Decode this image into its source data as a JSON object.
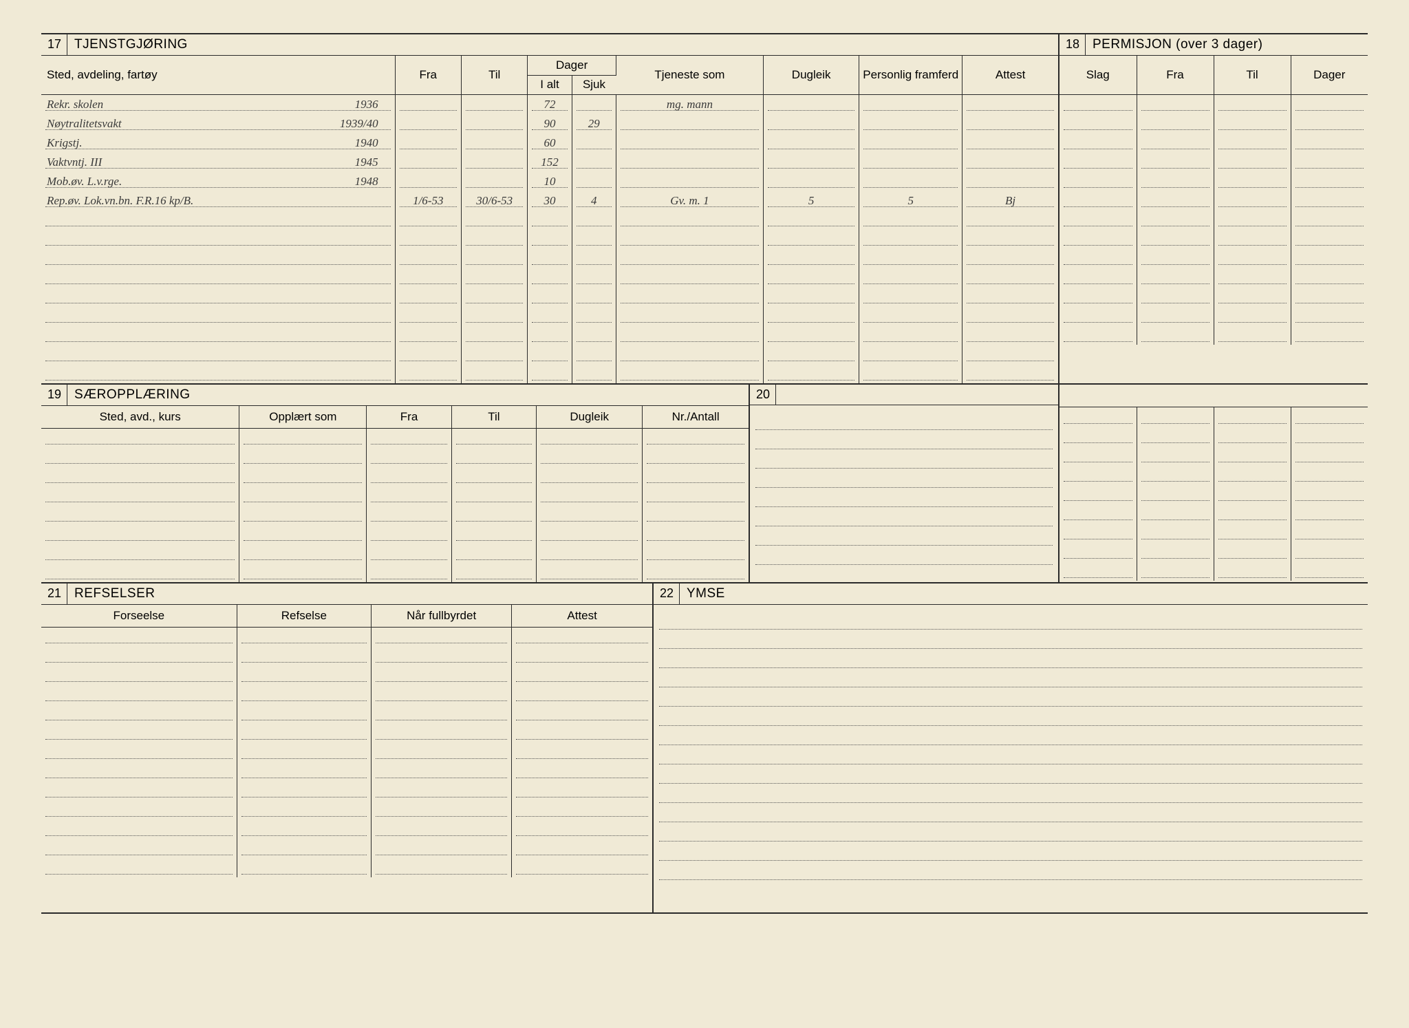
{
  "colors": {
    "paper": "#f0ead6",
    "ink": "#2a2a2a",
    "dotted": "#555555",
    "handwriting": "#3a3a3a"
  },
  "typography": {
    "print_family": "Arial, Helvetica, sans-serif",
    "hand_family": "Brush Script MT, cursive",
    "header_size_pt": 19,
    "label_size_pt": 17,
    "hand_size_pt": 24
  },
  "sec17": {
    "num": "17",
    "title": "TJENSTGJØRING",
    "columns": {
      "sted": "Sted, avdeling, fartøy",
      "fra": "Fra",
      "til": "Til",
      "dager": "Dager",
      "ialt": "I alt",
      "sjuk": "Sjuk",
      "tjeneste": "Tjeneste som",
      "dugleik": "Dugleik",
      "personlig": "Personlig framferd",
      "attest": "Attest"
    },
    "rows": [
      {
        "sted": "Rekr. skolen",
        "year": "1936",
        "fra": "",
        "til": "",
        "ialt": "72",
        "sjuk": "",
        "tjeneste": "mg. mann",
        "dugleik": "",
        "personlig": "",
        "attest": ""
      },
      {
        "sted": "Nøytralitetsvakt",
        "year": "1939/40",
        "fra": "",
        "til": "",
        "ialt": "90",
        "sjuk": "29",
        "tjeneste": "",
        "dugleik": "",
        "personlig": "",
        "attest": ""
      },
      {
        "sted": "Krigstj.",
        "year": "1940",
        "fra": "",
        "til": "",
        "ialt": "60",
        "sjuk": "",
        "tjeneste": "",
        "dugleik": "",
        "personlig": "",
        "attest": ""
      },
      {
        "sted": "Vaktvntj. III",
        "year": "1945",
        "fra": "",
        "til": "",
        "ialt": "152",
        "sjuk": "",
        "tjeneste": "",
        "dugleik": "",
        "personlig": "",
        "attest": ""
      },
      {
        "sted": "Mob.øv. L.v.rge.",
        "year": "1948",
        "fra": "",
        "til": "",
        "ialt": "10",
        "sjuk": "",
        "tjeneste": "",
        "dugleik": "",
        "personlig": "",
        "attest": ""
      },
      {
        "sted": "Rep.øv. Lok.vn.bn.  F.R.16 kp/B.",
        "year": "",
        "fra": "1/6-53",
        "til": "30/6-53",
        "ialt": "30",
        "sjuk": "4",
        "tjeneste": "Gv. m. 1",
        "dugleik": "5",
        "personlig": "5",
        "attest": "Bj"
      }
    ],
    "blank_rows": 9
  },
  "sec18": {
    "num": "18",
    "title": "PERMISJON (over 3 dager)",
    "columns": {
      "slag": "Slag",
      "fra": "Fra",
      "til": "Til",
      "dager": "Dager"
    },
    "blank_rows": 13,
    "blank_rows_lower": 9
  },
  "sec19": {
    "num": "19",
    "title": "SÆROPPLÆRING",
    "columns": {
      "sted": "Sted, avd., kurs",
      "opplart": "Opplært som",
      "fra": "Fra",
      "til": "Til",
      "dugleik": "Dugleik",
      "nr": "Nr./Antall"
    },
    "blank_rows": 8
  },
  "sec20": {
    "num": "20",
    "title": "",
    "blank_rows": 8
  },
  "sec21": {
    "num": "21",
    "title": "REFSELSER",
    "columns": {
      "forseelse": "Forseelse",
      "refselse": "Refselse",
      "nar": "Når fullbyrdet",
      "attest": "Attest"
    },
    "blank_rows": 13
  },
  "sec22": {
    "num": "22",
    "title": "YMSE",
    "blank_rows": 14
  }
}
